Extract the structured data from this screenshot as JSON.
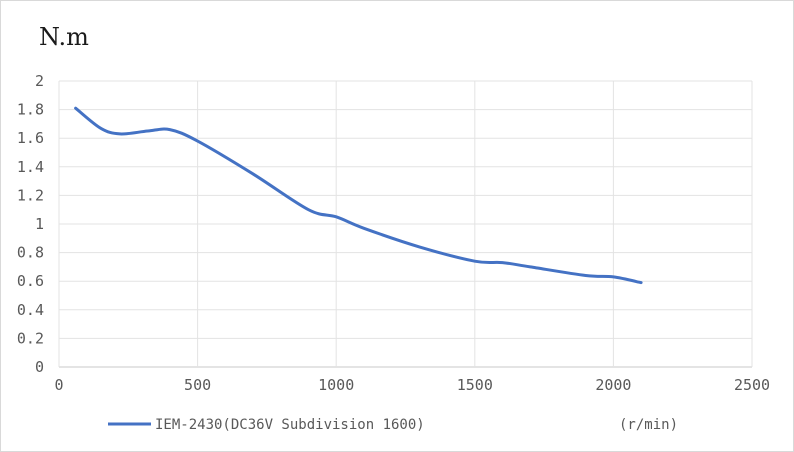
{
  "chart_data": {
    "type": "line",
    "y_unit_label": "N.m",
    "x_unit_label": "(r/min)",
    "xlim": [
      0,
      2500
    ],
    "ylim": [
      0,
      2
    ],
    "x_ticks": [
      0,
      500,
      1000,
      1500,
      2000,
      2500
    ],
    "y_ticks": [
      0,
      0.2,
      0.4,
      0.6,
      0.8,
      1,
      1.2,
      1.4,
      1.6,
      1.8,
      2
    ],
    "grid": true,
    "legend_position": "bottom-left",
    "series": [
      {
        "name": "IEM-2430(DC36V Subdivision 1600)",
        "color": "#4472c4",
        "x": [
          60,
          150,
          220,
          320,
          400,
          500,
          700,
          900,
          1000,
          1100,
          1300,
          1500,
          1600,
          1700,
          1900,
          2000,
          2100
        ],
        "y": [
          1.81,
          1.67,
          1.63,
          1.65,
          1.66,
          1.58,
          1.35,
          1.1,
          1.05,
          0.97,
          0.84,
          0.74,
          0.73,
          0.7,
          0.64,
          0.63,
          0.59
        ]
      }
    ]
  }
}
